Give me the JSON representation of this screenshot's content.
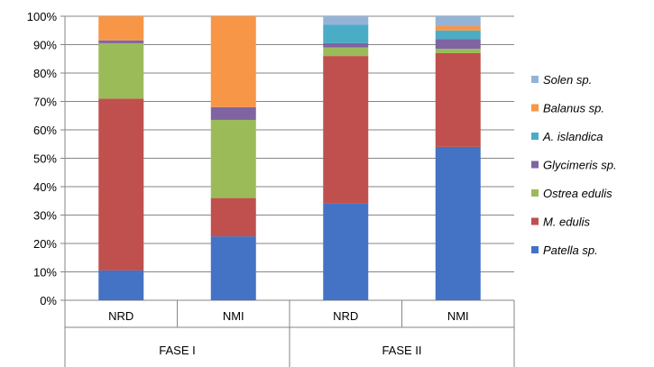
{
  "chart_data": {
    "type": "bar",
    "stacked": true,
    "percent": true,
    "categories": [
      "NRD",
      "NMI",
      "NRD",
      "NMI"
    ],
    "groups": [
      {
        "label": "FASE I",
        "categories": [
          0,
          1
        ]
      },
      {
        "label": "FASE II",
        "categories": [
          2,
          3
        ]
      }
    ],
    "series": [
      {
        "name": "Patella sp.",
        "color": "#4472C4",
        "values": [
          10.5,
          22.5,
          34,
          54
        ]
      },
      {
        "name": "M. edulis",
        "color": "#C0504D",
        "values": [
          60.5,
          13.5,
          52,
          33
        ]
      },
      {
        "name": "Ostrea edulis",
        "color": "#9BBB59",
        "values": [
          19.5,
          27.5,
          3,
          1.5
        ]
      },
      {
        "name": "Glycimeris sp.",
        "color": "#8064A2",
        "values": [
          1,
          4.5,
          1.5,
          3.5
        ]
      },
      {
        "name": "A. islandica",
        "color": "#4BACC6",
        "values": [
          0,
          0,
          6.5,
          3
        ]
      },
      {
        "name": "Balanus sp.",
        "color": "#F79646",
        "values": [
          8.5,
          32,
          0,
          1.5
        ]
      },
      {
        "name": "Solen sp.",
        "color": "#95B3D7",
        "values": [
          0,
          0,
          3,
          3.5
        ]
      }
    ],
    "yticks": [
      "0%",
      "10%",
      "20%",
      "30%",
      "40%",
      "50%",
      "60%",
      "70%",
      "80%",
      "90%",
      "100%"
    ],
    "ylim": [
      0,
      100
    ],
    "grid": true,
    "legend": "right"
  }
}
